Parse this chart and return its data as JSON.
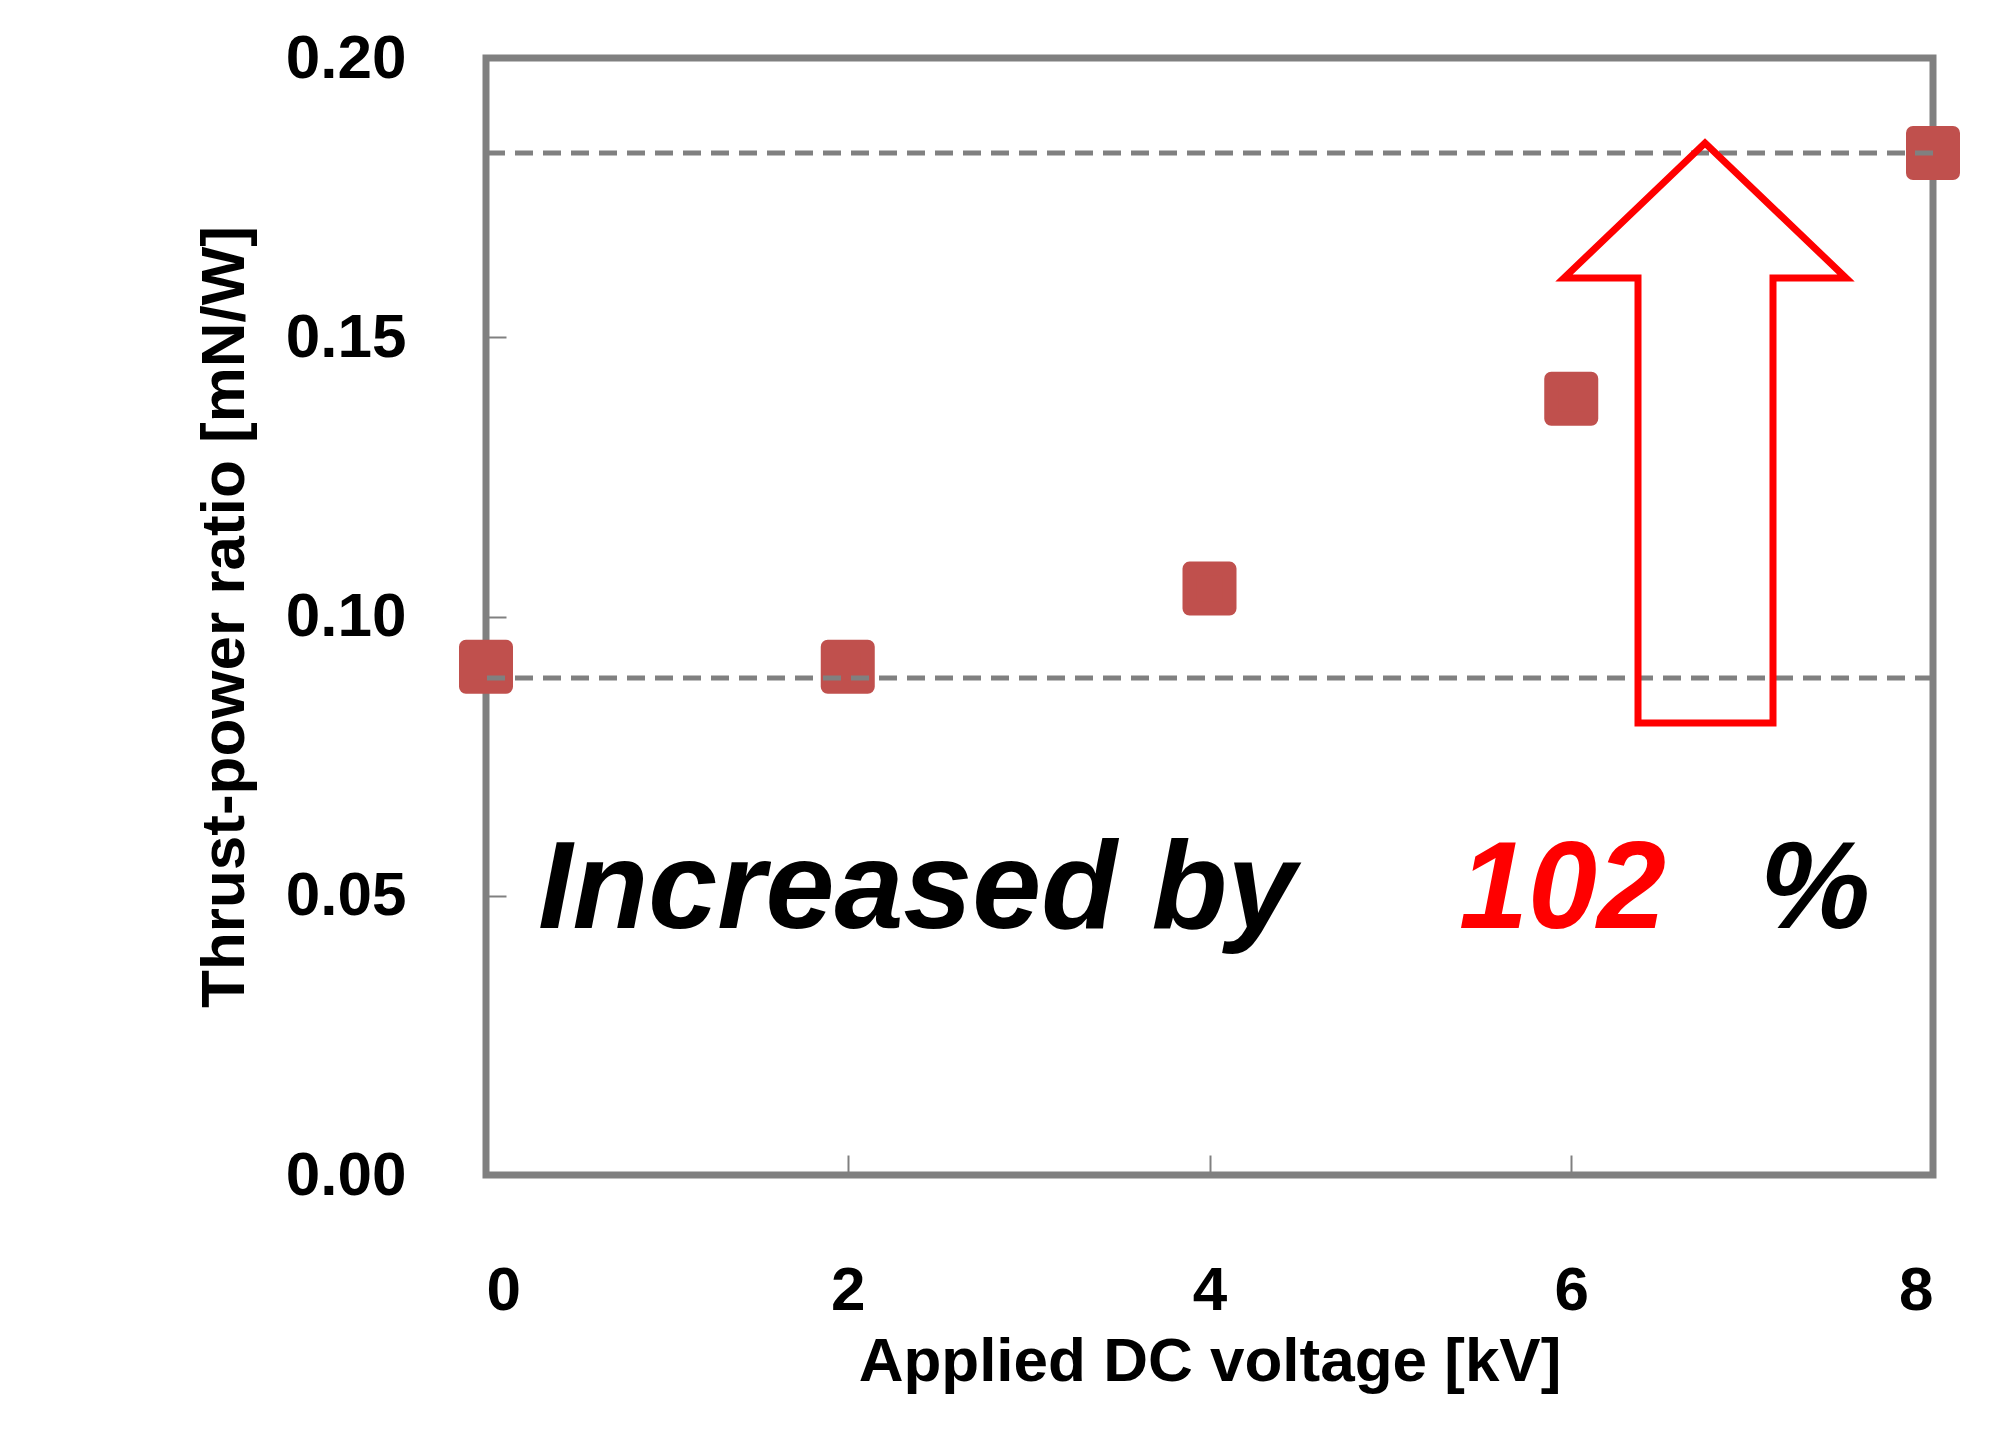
{
  "chart_data": {
    "type": "scatter",
    "xlabel": "Applied DC voltage [kV]",
    "ylabel": "Thrust-power ratio [mN/W]",
    "x": [
      0,
      2,
      4,
      6,
      8
    ],
    "series": [
      {
        "color": "#c0504d",
        "values": [
          0.091,
          0.091,
          0.105,
          0.139,
          0.183
        ]
      }
    ],
    "xlim": [
      0,
      8
    ],
    "xticks": [
      0,
      2,
      4,
      6,
      8
    ],
    "ylim": [
      0,
      0.2
    ],
    "yticks": [
      {
        "value": 0,
        "label": "0.00"
      },
      {
        "value": 0.05,
        "label": "0.05"
      },
      {
        "value": 0.1,
        "label": "0.10"
      },
      {
        "value": 0.15,
        "label": "0.15"
      },
      {
        "value": 0.2,
        "label": "0.20"
      }
    ],
    "marker": "square",
    "grid": false,
    "ref_lines": [
      {
        "axis": "y",
        "value": 0.089,
        "color": "#808080",
        "line_style": "dashed"
      },
      {
        "axis": "y",
        "value": 0.183,
        "color": "#808080",
        "line_style": "dashed"
      }
    ],
    "annotations": [
      "Increased by",
      "102",
      "%"
    ]
  }
}
